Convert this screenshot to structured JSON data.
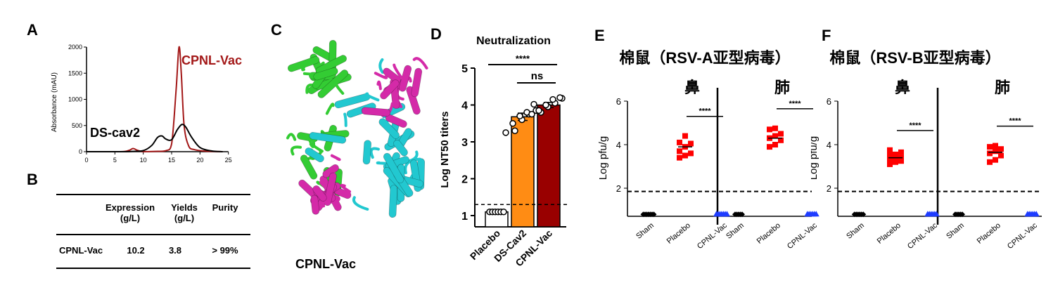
{
  "panels": {
    "a": "A",
    "b": "B",
    "c": "C",
    "d": "D",
    "e": "E",
    "f": "F"
  },
  "colors": {
    "cpnl": "#a31818",
    "ds": "#000000",
    "ds_bar": "#ff8c14",
    "cpnl_bar": "#990000",
    "placebo_pts": "#ff0000",
    "vac_pts": "#1e3cff",
    "protein_green": "#33cc33",
    "protein_cyan": "#22c8d0",
    "protein_magenta": "#d42aa8"
  },
  "chart_data": [
    {
      "id": "A",
      "type": "line",
      "xlabel": "",
      "ylabel": "Absorbance (mAU)",
      "xlim": [
        0,
        30
      ],
      "ylim": [
        0,
        2000
      ],
      "xticks": [
        "0",
        "5",
        "10",
        "15",
        "20",
        "25"
      ],
      "yticks": [
        "0",
        "500",
        "1000",
        "1500",
        "2000"
      ],
      "series": [
        {
          "name": "CPNL-Vac",
          "x": [
            0,
            6,
            7.5,
            8.2,
            9,
            10,
            12,
            14,
            15,
            15.8,
            16.3,
            16.7,
            17.2,
            18,
            19,
            21,
            24
          ],
          "y": [
            0,
            0,
            25,
            60,
            25,
            0,
            5,
            20,
            150,
            1200,
            2000,
            1500,
            500,
            110,
            40,
            10,
            0
          ]
        },
        {
          "name": "DS-cav2",
          "x": [
            0,
            6,
            8,
            10,
            11.5,
            12.5,
            13.3,
            14,
            15,
            16,
            16.8,
            17.5,
            18.5,
            20,
            22,
            24
          ],
          "y": [
            0,
            0,
            5,
            20,
            120,
            270,
            300,
            240,
            230,
            420,
            520,
            470,
            280,
            80,
            15,
            0
          ]
        }
      ]
    },
    {
      "id": "B",
      "type": "table",
      "headers": [
        [
          "Expression",
          "(g/L)"
        ],
        [
          "Yields",
          "(g/L)"
        ],
        [
          "Purity"
        ]
      ],
      "rows": [
        [
          "CPNL-Vac",
          "10.2",
          "3.8",
          "> 99%"
        ]
      ]
    },
    {
      "id": "D",
      "type": "bar",
      "title": "Neutralization",
      "ylabel": "Log NT50 titers",
      "ylim": [
        0.8,
        5
      ],
      "yticks": [
        "1",
        "2",
        "3",
        "4",
        "5"
      ],
      "threshold": 1.3,
      "categories": [
        "Placebo",
        "DS-Cav2",
        "CPNL-Vac"
      ],
      "values": [
        1.1,
        3.68,
        4.0
      ],
      "errors": [
        0,
        0.1,
        0.07
      ],
      "points": [
        [
          1.1,
          1.1,
          1.1,
          1.1,
          1.1,
          1.1
        ],
        [
          3.25,
          3.3,
          3.5,
          3.6,
          3.7,
          3.75,
          3.8,
          3.85,
          4.02
        ],
        [
          3.75,
          3.8,
          3.85,
          3.95,
          4.0,
          4.05,
          4.15,
          4.18,
          4.2
        ]
      ],
      "significance": [
        {
          "pair": [
            0,
            2
          ],
          "label": "****"
        },
        {
          "pair": [
            1,
            2
          ],
          "label": "ns"
        }
      ]
    },
    {
      "id": "E",
      "type": "scatter",
      "title": "棉鼠（RSV-A亚型病毒）",
      "ylabel": "Log pfu/g",
      "ylim": [
        0.5,
        6
      ],
      "yticks": [
        "2",
        "4",
        "6"
      ],
      "threshold": 1.85,
      "groups": [
        {
          "label": "鼻",
          "categories": [
            "Sham",
            "Placebo",
            "CPNL-Vac"
          ],
          "points": [
            [
              0.8,
              0.8,
              0.8,
              0.8,
              0.8,
              0.8,
              0.8
            ],
            [
              3.4,
              3.5,
              3.6,
              3.7,
              3.9,
              4.05,
              4.1,
              4.4
            ],
            [
              0.8,
              0.8,
              0.8,
              0.8,
              0.8,
              0.8,
              0.8
            ]
          ],
          "mean": [
            null,
            3.9,
            null
          ],
          "significance": "****"
        },
        {
          "label": "肺",
          "categories": [
            "Sham",
            "Placebo",
            "CPNL-Vac"
          ],
          "points": [
            [
              0.8,
              0.8,
              0.8,
              0.8,
              0.8
            ],
            [
              3.9,
              4.0,
              4.2,
              4.3,
              4.4,
              4.5,
              4.7,
              4.75
            ],
            [
              0.8,
              0.8,
              0.8,
              0.8,
              0.8,
              0.8
            ]
          ],
          "mean": [
            null,
            4.3,
            null
          ],
          "significance": "****"
        }
      ]
    },
    {
      "id": "F",
      "type": "scatter",
      "title": "棉鼠（RSV-B亚型病毒）",
      "ylabel": "Log pfu/g",
      "ylim": [
        0.5,
        6
      ],
      "yticks": [
        "2",
        "4",
        "6"
      ],
      "threshold": 1.85,
      "groups": [
        {
          "label": "鼻",
          "categories": [
            "Sham",
            "Placebo",
            "CPNL-Vac"
          ],
          "points": [
            [
              0.8,
              0.8,
              0.8,
              0.8,
              0.8,
              0.8
            ],
            [
              3.1,
              3.2,
              3.25,
              3.3,
              3.35,
              3.4,
              3.5,
              3.55,
              3.65,
              3.75
            ],
            [
              0.8,
              0.8,
              0.8,
              0.8,
              0.8,
              0.8
            ]
          ],
          "mean": [
            null,
            3.4,
            null
          ],
          "significance": "****"
        },
        {
          "label": "肺",
          "categories": [
            "Sham",
            "Placebo",
            "CPNL-Vac"
          ],
          "points": [
            [
              0.8,
              0.8,
              0.8,
              0.8,
              0.8
            ],
            [
              3.2,
              3.3,
              3.5,
              3.6,
              3.7,
              3.8,
              3.9,
              3.95
            ],
            [
              0.8,
              0.8,
              0.8,
              0.8,
              0.8,
              0.8
            ]
          ],
          "mean": [
            null,
            3.65,
            null
          ],
          "significance": "****"
        }
      ]
    }
  ],
  "structure_caption": "CPNL-Vac"
}
